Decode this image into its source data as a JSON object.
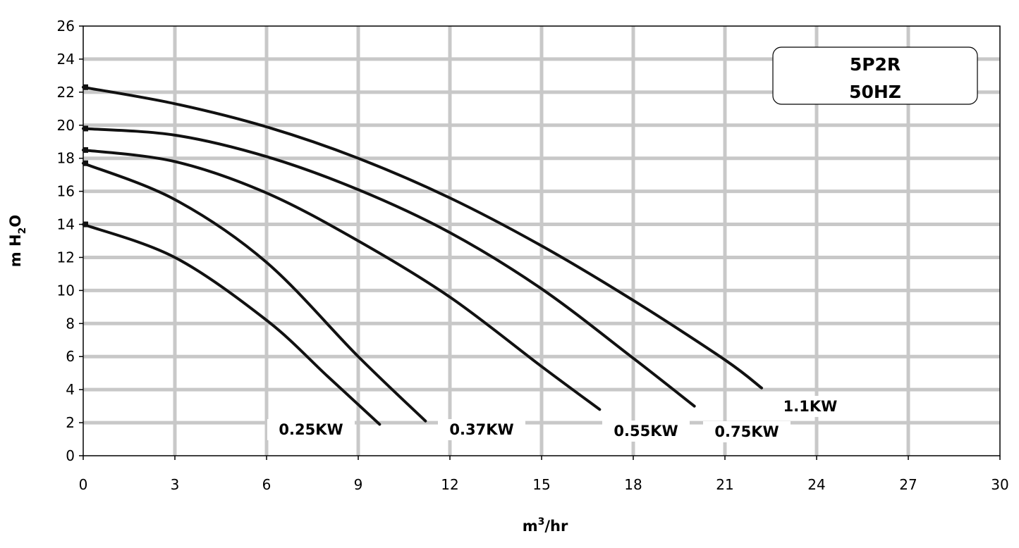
{
  "chart_data": {
    "type": "line",
    "title": "",
    "model_box": {
      "line1": "5P2R",
      "line2": "50HZ"
    },
    "xlabel": {
      "base": "m",
      "sup": "3",
      "rest": "/hr"
    },
    "ylabel": {
      "base": "m H",
      "sub": "2",
      "rest": "O"
    },
    "xlim": [
      0,
      30
    ],
    "ylim": [
      0,
      26
    ],
    "xticks": [
      "0",
      "3",
      "6",
      "9",
      "12",
      "15",
      "18",
      "21",
      "24",
      "27",
      "30"
    ],
    "yticks": [
      "0",
      "2",
      "4",
      "6",
      "8",
      "10",
      "12",
      "14",
      "16",
      "18",
      "20",
      "22",
      "24",
      "26"
    ],
    "grid": true,
    "legend": "none",
    "colors": {
      "line": "#111111",
      "grid": "#c8c8c8",
      "frame": "#000000"
    },
    "series": [
      {
        "name": "0.25KW",
        "x": [
          0,
          3,
          6,
          8,
          9.7
        ],
        "y": [
          14.0,
          12.0,
          8.2,
          4.8,
          1.9
        ]
      },
      {
        "name": "0.37KW",
        "x": [
          0,
          3,
          6,
          9,
          11.2
        ],
        "y": [
          17.7,
          15.5,
          11.7,
          6.0,
          2.1
        ]
      },
      {
        "name": "0.55KW",
        "x": [
          0,
          3,
          6,
          9,
          12,
          15,
          16.9
        ],
        "y": [
          18.5,
          17.8,
          15.9,
          13.0,
          9.6,
          5.4,
          2.8
        ]
      },
      {
        "name": "0.75KW",
        "x": [
          0,
          3,
          6,
          9,
          12,
          15,
          18,
          20.0
        ],
        "y": [
          19.8,
          19.4,
          18.1,
          16.1,
          13.5,
          10.1,
          5.9,
          3.0
        ]
      },
      {
        "name": "1.1KW",
        "x": [
          0,
          3,
          6,
          9,
          12,
          15,
          18,
          21,
          22.2
        ],
        "y": [
          22.3,
          21.3,
          19.9,
          18.0,
          15.6,
          12.7,
          9.4,
          5.8,
          4.1
        ]
      }
    ]
  }
}
